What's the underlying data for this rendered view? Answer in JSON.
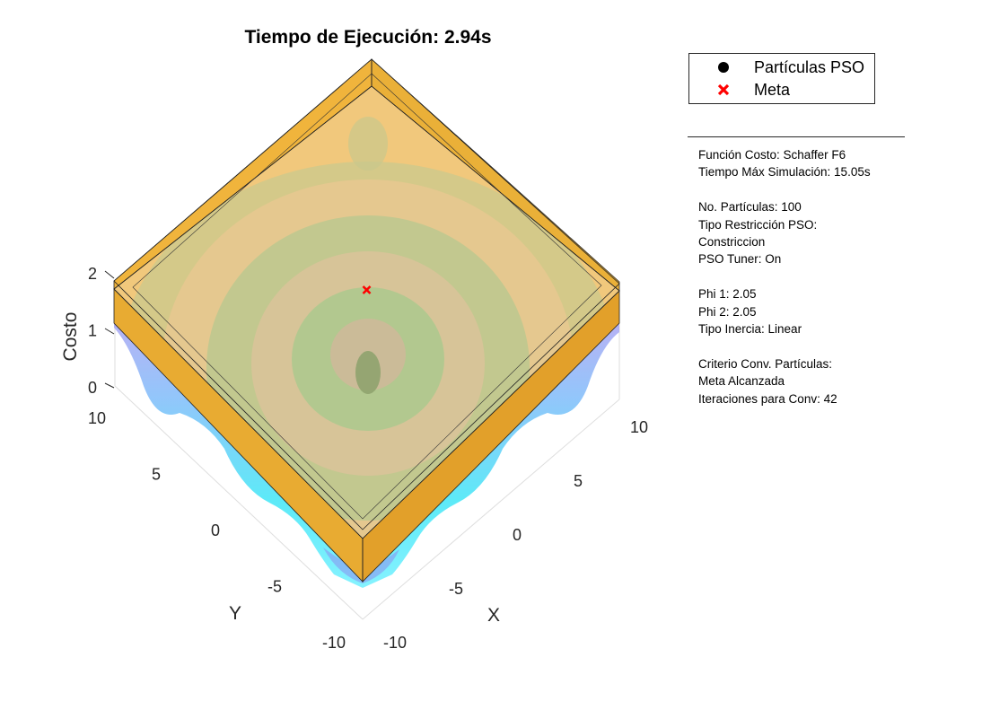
{
  "chart_data": {
    "type": "surface3d",
    "title": "Tiempo de Ejecución: 2.94s",
    "function": "Schaffer F6",
    "xlabel": "X",
    "ylabel": "Y",
    "zlabel": "Costo",
    "xlim": [
      -10,
      10
    ],
    "ylim": [
      -10,
      10
    ],
    "zlim": [
      0,
      2
    ],
    "x_ticks": [
      -10,
      -5,
      0,
      5,
      10
    ],
    "y_ticks": [
      -10,
      -5,
      0,
      5,
      10
    ],
    "z_ticks": [
      0,
      1,
      2
    ],
    "constraint_box": {
      "x": [
        -10,
        10
      ],
      "y": [
        -10,
        10
      ],
      "z": [
        1.5,
        2
      ],
      "color": "#e8a825"
    },
    "series": [
      {
        "name": "Partículas PSO",
        "marker": "circle",
        "color": "#000000",
        "points": []
      },
      {
        "name": "Meta",
        "marker": "x",
        "color": "#ff0000",
        "points": [
          {
            "x": 0,
            "y": 0,
            "z": 2
          }
        ]
      }
    ],
    "surface_colormap": [
      "#00ffff",
      "#b080ff"
    ]
  },
  "legend": {
    "particles_label": "Partículas PSO",
    "goal_label": "Meta"
  },
  "info": {
    "lines": [
      "Función Costo: Schaffer F6",
      "Tiempo Máx Simulación: 15.05s",
      "",
      "No. Partículas: 100",
      "Tipo Restricción PSO:",
      "Constriccion",
      "PSO Tuner: On",
      "",
      "Phi 1: 2.05",
      "Phi 2: 2.05",
      "Tipo Inercia: Linear",
      "",
      "Criterio Conv. Partículas:",
      "Meta Alcanzada",
      "Iteraciones para Conv: 42"
    ]
  }
}
